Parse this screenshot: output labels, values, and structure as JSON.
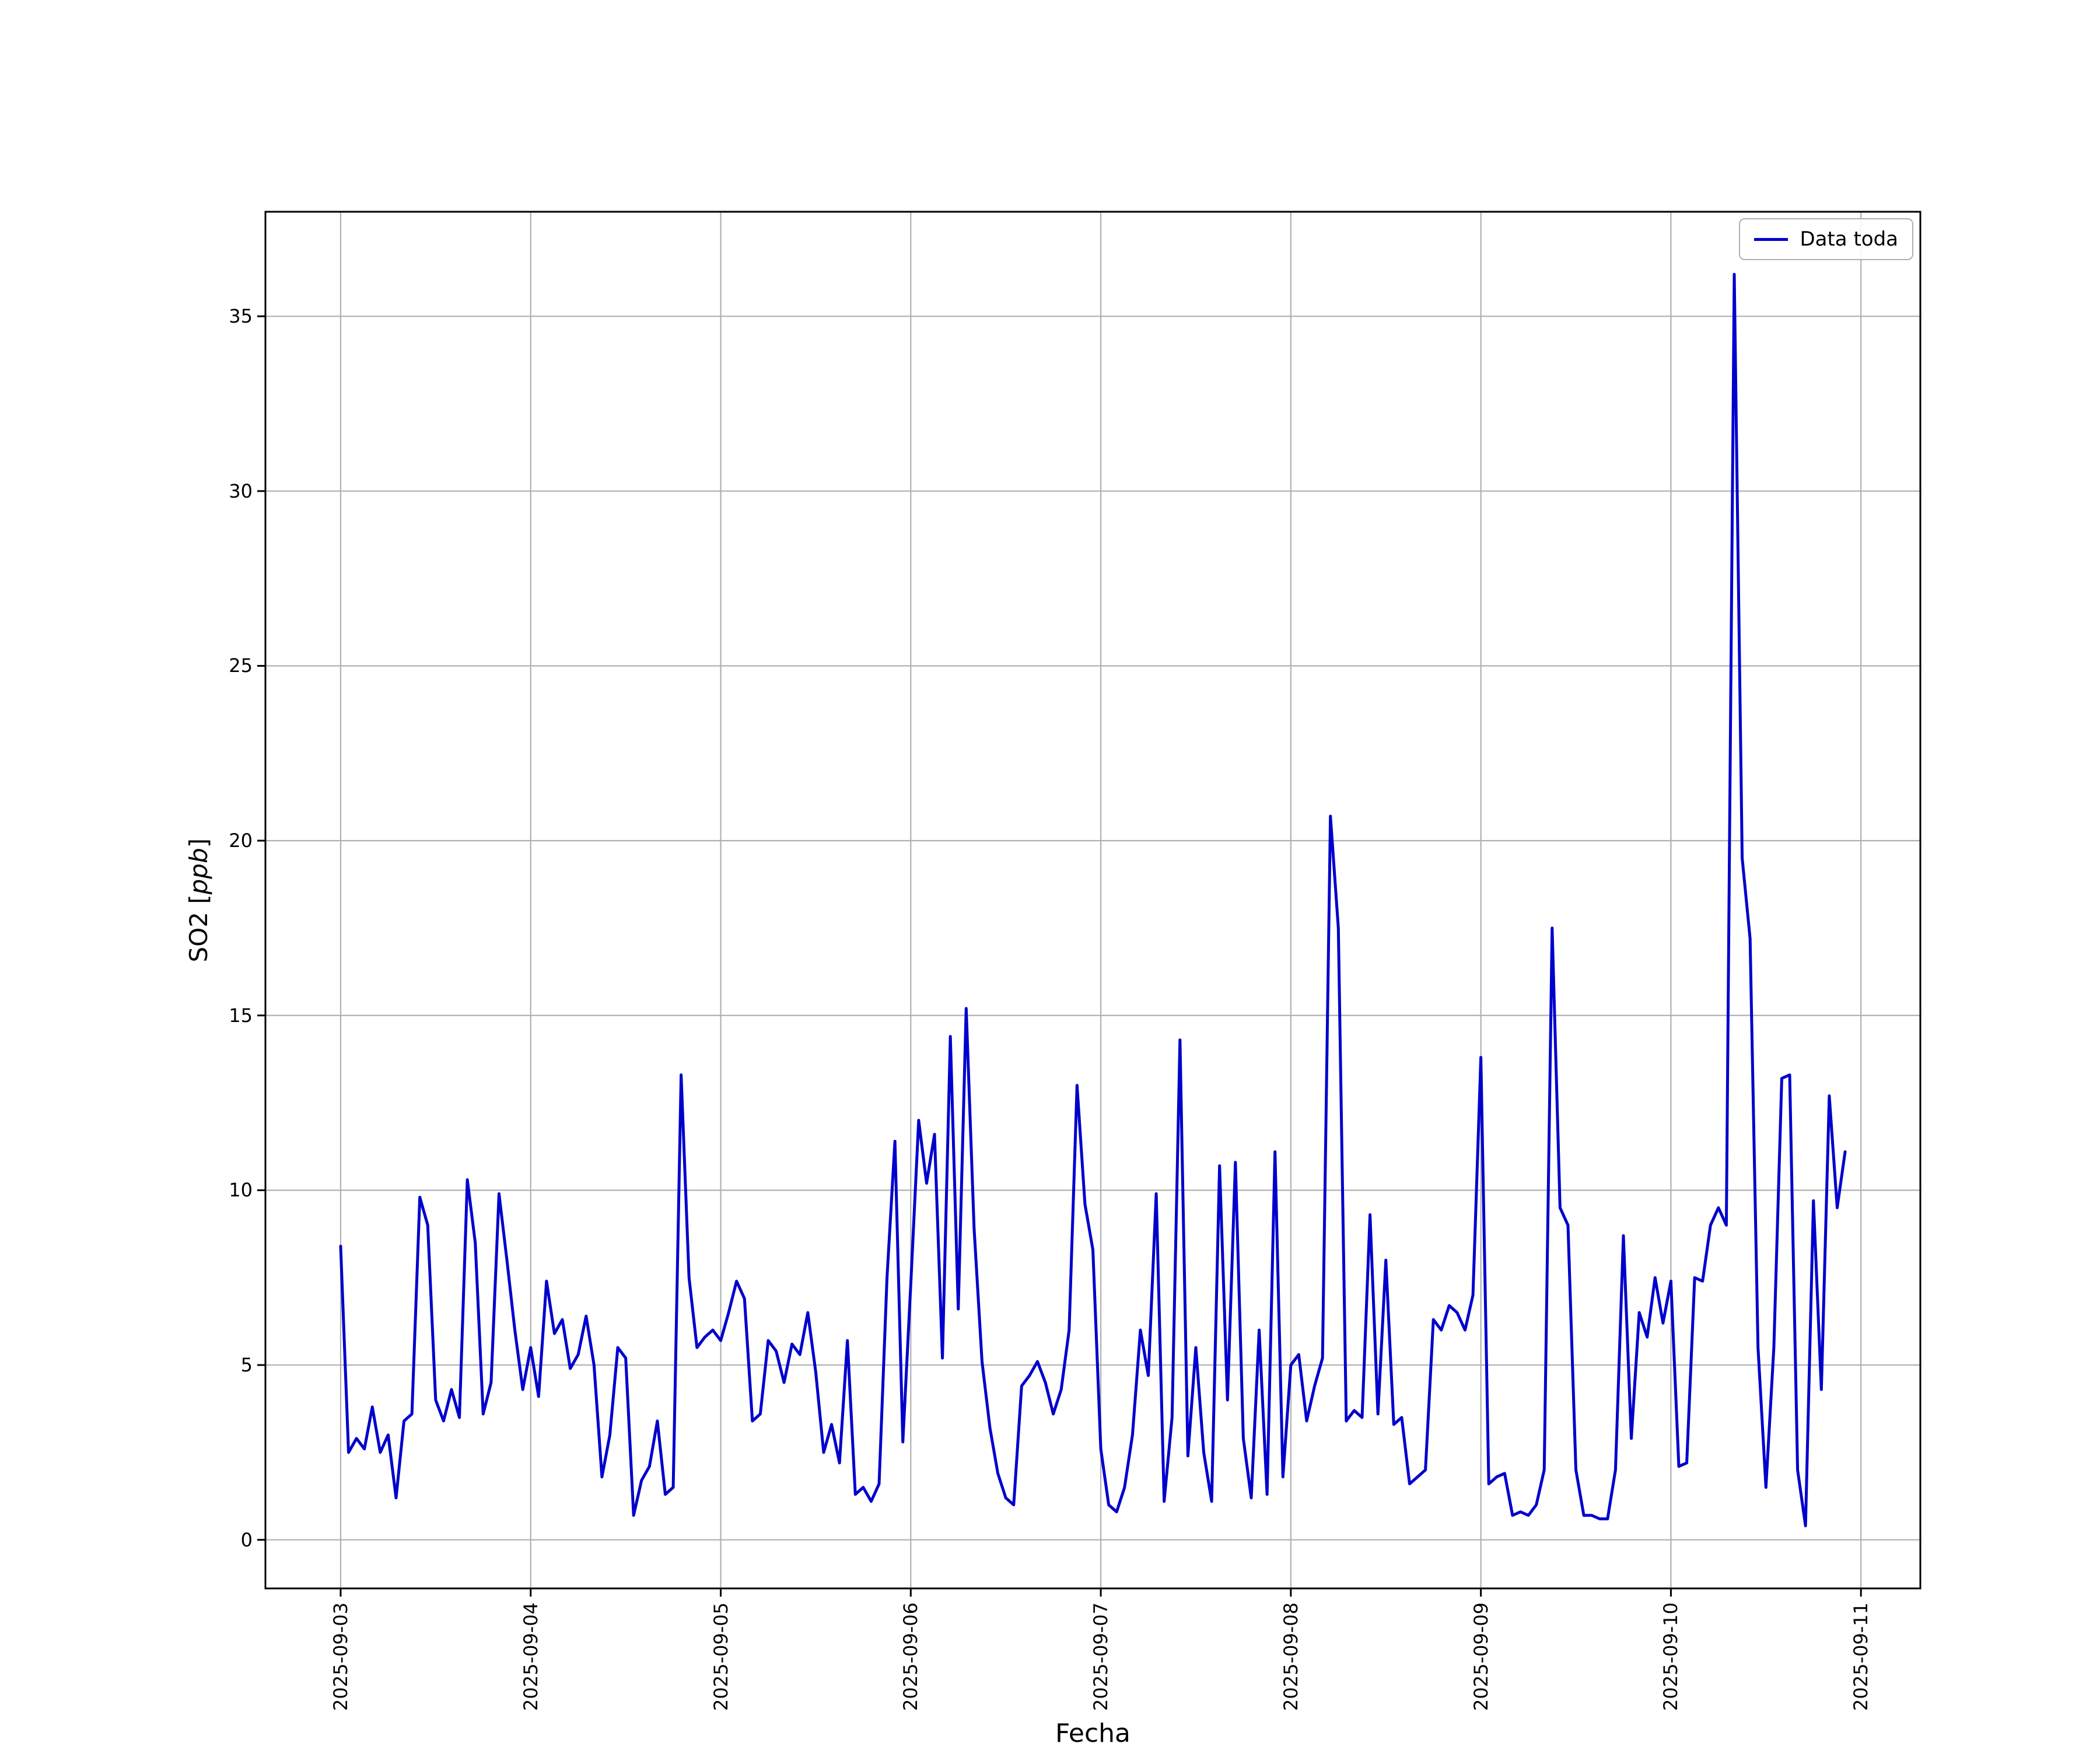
{
  "figure": {
    "background": "#ffffff"
  },
  "chart_data": {
    "type": "line",
    "title": "",
    "xlabel": "Fecha",
    "ylabel": "SO2 [ppb]",
    "ylabel_parts": {
      "prefix": "SO2 [",
      "italic": "ppb",
      "suffix": "]"
    },
    "grid": true,
    "grid_color": "#b0b0b0",
    "axes_color": "#000000",
    "legend": {
      "position": "upper-right",
      "entries": [
        {
          "label": "Data toda",
          "color": "#0000cd"
        }
      ]
    },
    "x_axis": {
      "tick_labels": [
        "2025-09-03",
        "2025-09-04",
        "2025-09-05",
        "2025-09-06",
        "2025-09-07",
        "2025-09-08",
        "2025-09-09",
        "2025-09-10",
        "2025-09-11"
      ],
      "tick_hours": [
        0,
        24,
        48,
        72,
        96,
        120,
        144,
        168,
        192
      ],
      "xlim_hours": [
        -9.5,
        199.5
      ]
    },
    "y_axis": {
      "tick_labels": [
        "0",
        "5",
        "10",
        "15",
        "20",
        "25",
        "30",
        "35"
      ],
      "ticks": [
        0,
        5,
        10,
        15,
        20,
        25,
        30,
        35
      ],
      "ylim": [
        -1.39,
        37.99
      ]
    },
    "series": [
      {
        "name": "Data toda",
        "color": "#0000cd",
        "x_start": "2025-09-03 00:00",
        "x_step_hours": 1,
        "values": [
          8.4,
          2.5,
          2.9,
          2.6,
          3.8,
          2.5,
          3.0,
          1.2,
          3.4,
          3.6,
          9.8,
          9.0,
          4.0,
          3.4,
          4.3,
          3.5,
          10.3,
          8.5,
          3.6,
          4.5,
          9.9,
          8.0,
          6.0,
          4.3,
          5.5,
          4.1,
          7.4,
          5.9,
          6.3,
          4.9,
          5.3,
          6.4,
          5.0,
          1.8,
          3.0,
          5.5,
          5.2,
          0.7,
          1.7,
          2.1,
          3.4,
          1.3,
          1.5,
          13.3,
          7.5,
          5.5,
          5.8,
          6.0,
          5.7,
          6.5,
          7.4,
          6.9,
          3.4,
          3.6,
          5.7,
          5.4,
          4.5,
          5.6,
          5.3,
          6.5,
          4.8,
          2.5,
          3.3,
          2.2,
          5.7,
          1.3,
          1.5,
          1.1,
          1.6,
          7.5,
          11.4,
          2.8,
          7.3,
          12.0,
          10.2,
          11.6,
          5.2,
          14.4,
          6.6,
          15.2,
          8.9,
          5.1,
          3.2,
          1.9,
          1.2,
          1.0,
          4.4,
          4.7,
          5.1,
          4.5,
          3.6,
          4.3,
          6.0,
          13.0,
          9.6,
          8.3,
          2.6,
          1.0,
          0.8,
          1.5,
          3.0,
          6.0,
          4.7,
          9.9,
          1.1,
          3.5,
          14.3,
          2.4,
          5.5,
          2.5,
          1.1,
          10.7,
          4.0,
          10.8,
          2.9,
          1.2,
          6.0,
          1.3,
          11.1,
          1.8,
          5.0,
          5.3,
          3.4,
          4.4,
          5.2,
          20.7,
          17.5,
          3.4,
          3.7,
          3.5,
          9.3,
          3.6,
          8.0,
          3.3,
          3.5,
          1.6,
          1.8,
          2.0,
          6.3,
          6.0,
          6.7,
          6.5,
          6.0,
          7.0,
          13.8,
          1.6,
          1.8,
          1.9,
          0.7,
          0.8,
          0.7,
          1.0,
          2.0,
          17.5,
          9.5,
          9.0,
          2.0,
          0.7,
          0.7,
          0.6,
          0.6,
          2.0,
          8.7,
          2.9,
          6.5,
          5.8,
          7.5,
          6.2,
          7.4,
          2.1,
          2.2,
          7.5,
          7.4,
          9.0,
          9.5,
          9.0,
          36.2,
          19.5,
          17.2,
          5.5,
          1.5,
          5.5,
          13.2,
          13.3,
          2.0,
          0.4,
          9.7,
          4.3,
          12.7,
          9.5,
          11.1
        ]
      }
    ]
  }
}
